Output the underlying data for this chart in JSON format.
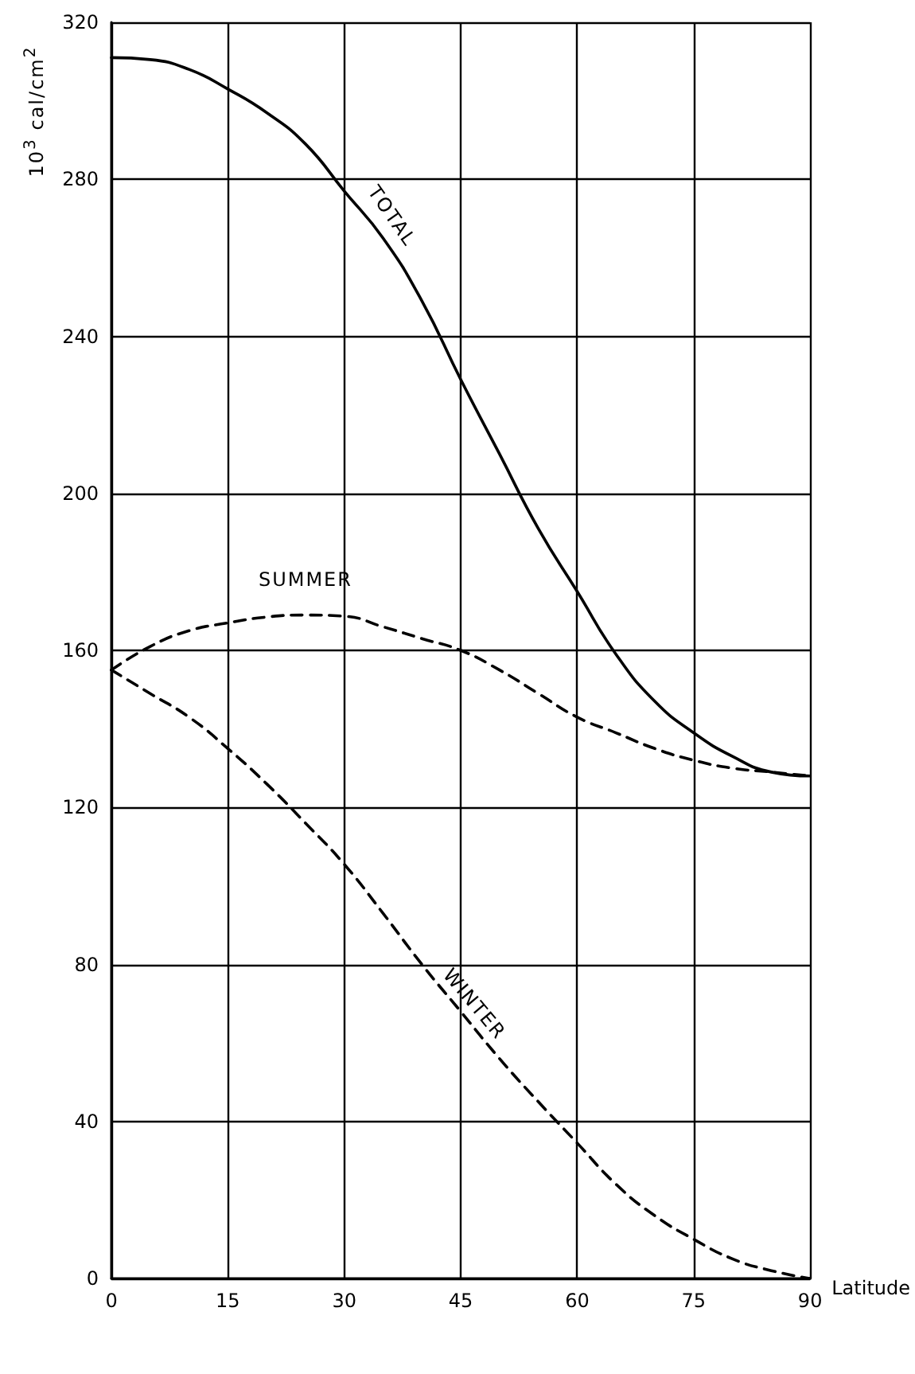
{
  "chart_data": {
    "type": "line",
    "xlabel": "Latitude",
    "ylabel": "10$^{3}$ cal/cm$^{2}$",
    "x": [
      0,
      5,
      10,
      15,
      20,
      25,
      30,
      35,
      40,
      45,
      50,
      55,
      60,
      65,
      70,
      75,
      80,
      85,
      90
    ],
    "series": [
      {
        "name": "TOTAL",
        "color": "#000000",
        "line_style": "solid",
        "values": [
          311,
          310.5,
          308,
          303,
          297,
          289,
          277,
          265,
          249,
          229,
          210,
          191,
          175,
          159,
          147,
          139,
          133,
          129,
          128
        ]
      },
      {
        "name": "SUMMER",
        "color": "#000000",
        "line_style": "dashed",
        "values": [
          155,
          161,
          165,
          167,
          168.5,
          169,
          168.7,
          166,
          163,
          160,
          155,
          149,
          143,
          139,
          135,
          132,
          130,
          129,
          128
        ]
      },
      {
        "name": "WINTER",
        "color": "#000000",
        "line_style": "dashed",
        "values": [
          155,
          149,
          143,
          135,
          126,
          116,
          105.5,
          93,
          80,
          68,
          56,
          45,
          34.5,
          24,
          16,
          10,
          5,
          2,
          0
        ]
      }
    ],
    "xlim": [
      0,
      90
    ],
    "xticks": [
      0,
      15,
      30,
      45,
      60,
      75,
      90
    ],
    "ylim": [
      0,
      320
    ],
    "yticks": [
      0,
      40,
      80,
      120,
      160,
      200,
      240,
      280,
      320
    ],
    "grid": true,
    "legend": false,
    "marker": "none"
  }
}
